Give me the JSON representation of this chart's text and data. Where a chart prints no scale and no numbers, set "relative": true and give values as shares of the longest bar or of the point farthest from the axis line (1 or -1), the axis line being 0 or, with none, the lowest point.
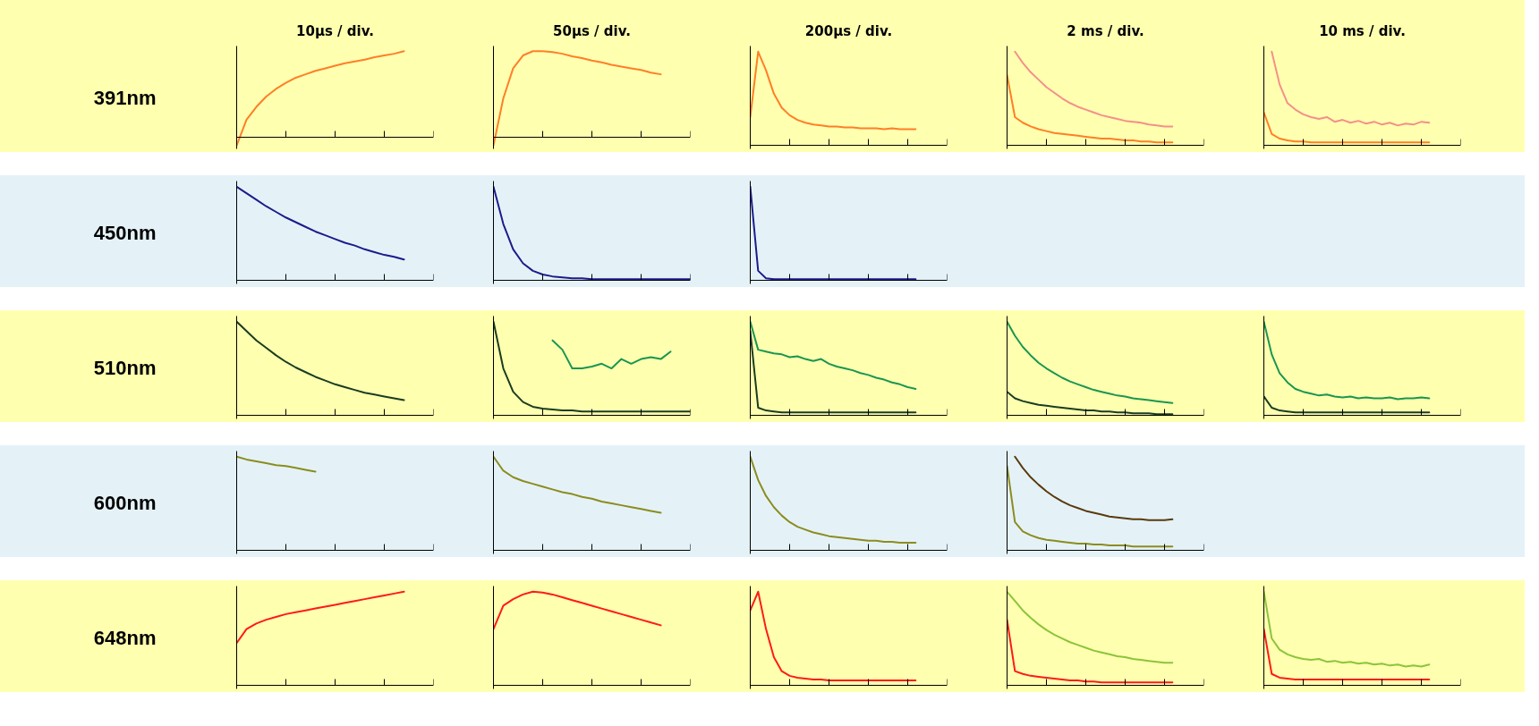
{
  "chart_data": [
    {
      "type": "line",
      "relative": true,
      "tick_labels": false,
      "title": "10μs / div.",
      "ylabel": "391nm",
      "categories": [
        null,
        null,
        null,
        null,
        null,
        null,
        null,
        null,
        null,
        null,
        null,
        null,
        null,
        null,
        null,
        null,
        null,
        null,
        null,
        null,
        null
      ],
      "series": [
        {
          "color": "#ff7f27",
          "values": [
            -0.1,
            0.2,
            0.35,
            0.47,
            0.56,
            0.63,
            0.69,
            0.73,
            0.77,
            0.8,
            0.83,
            0.86,
            0.88,
            0.9,
            0.93,
            0.95,
            0.97,
            1.0,
            null,
            null,
            null
          ]
        }
      ]
    },
    {
      "type": "line",
      "relative": true,
      "tick_labels": false,
      "title": "50μs / div.",
      "categories": [
        null,
        null,
        null,
        null,
        null,
        null,
        null,
        null,
        null,
        null,
        null,
        null,
        null,
        null,
        null,
        null,
        null,
        null,
        null,
        null,
        null
      ],
      "series": [
        {
          "color": "#ff7f27",
          "values": [
            -0.1,
            0.45,
            0.8,
            0.95,
            1.0,
            1.0,
            0.99,
            0.97,
            0.94,
            0.92,
            0.89,
            0.87,
            0.84,
            0.82,
            0.8,
            0.78,
            0.75,
            0.73,
            null,
            null,
            null
          ]
        }
      ]
    },
    {
      "type": "line",
      "relative": true,
      "tick_labels": false,
      "title": "200μs / div.",
      "categories": [
        null,
        null,
        null,
        null,
        null,
        null,
        null,
        null,
        null,
        null,
        null,
        null,
        null,
        null,
        null,
        null,
        null,
        null,
        null,
        null,
        null,
        null,
        null,
        null,
        null,
        null
      ],
      "series": [
        {
          "color": "#ff7f27",
          "values": [
            0.3,
            1.0,
            0.8,
            0.55,
            0.4,
            0.32,
            0.27,
            0.24,
            0.22,
            0.21,
            0.2,
            0.2,
            0.19,
            0.19,
            0.18,
            0.18,
            0.18,
            0.17,
            0.18,
            0.17,
            0.17,
            0.17,
            null,
            null,
            null,
            null
          ]
        }
      ]
    },
    {
      "type": "line",
      "relative": true,
      "tick_labels": false,
      "title": "2 ms / div.",
      "categories": [
        null,
        null,
        null,
        null,
        null,
        null,
        null,
        null,
        null,
        null,
        null,
        null,
        null,
        null,
        null,
        null,
        null,
        null,
        null,
        null,
        null,
        null,
        null,
        null,
        null,
        null
      ],
      "series": [
        {
          "color": "#ff7f27",
          "values": [
            0.75,
            0.3,
            0.24,
            0.2,
            0.17,
            0.15,
            0.13,
            0.12,
            0.11,
            0.1,
            0.09,
            0.08,
            0.07,
            0.07,
            0.06,
            0.05,
            0.05,
            0.04,
            0.04,
            0.03,
            0.03,
            0.03,
            null,
            null,
            null,
            null
          ]
        },
        {
          "color": "#f4908a",
          "values": [
            null,
            1.0,
            0.88,
            0.78,
            0.7,
            0.62,
            0.56,
            0.5,
            0.45,
            0.41,
            0.38,
            0.35,
            0.32,
            0.3,
            0.28,
            0.26,
            0.25,
            0.24,
            0.22,
            0.21,
            0.2,
            0.2,
            null,
            null,
            null,
            null
          ]
        }
      ]
    },
    {
      "type": "line",
      "relative": true,
      "tick_labels": false,
      "title": "10 ms / div.",
      "categories": [
        null,
        null,
        null,
        null,
        null,
        null,
        null,
        null,
        null,
        null,
        null,
        null,
        null,
        null,
        null,
        null,
        null,
        null,
        null,
        null,
        null,
        null,
        null,
        null,
        null,
        null
      ],
      "series": [
        {
          "color": "#ff7f27",
          "values": [
            0.35,
            0.12,
            0.07,
            0.05,
            0.04,
            0.04,
            0.03,
            0.03,
            0.03,
            0.03,
            0.03,
            0.03,
            0.03,
            0.03,
            0.03,
            0.03,
            0.03,
            0.03,
            0.03,
            0.03,
            0.03,
            0.03,
            null,
            null,
            null,
            null
          ]
        },
        {
          "color": "#f4908a",
          "values": [
            null,
            1.0,
            0.65,
            0.45,
            0.38,
            0.33,
            0.3,
            0.28,
            0.3,
            0.25,
            0.27,
            0.24,
            0.26,
            0.23,
            0.25,
            0.22,
            0.24,
            0.21,
            0.23,
            0.22,
            0.25,
            0.24,
            null,
            null,
            null,
            null
          ]
        }
      ]
    },
    {
      "type": "line",
      "relative": true,
      "tick_labels": false,
      "ylabel": "450nm",
      "categories": [
        null,
        null,
        null,
        null,
        null,
        null,
        null,
        null,
        null,
        null,
        null,
        null,
        null,
        null,
        null,
        null,
        null,
        null,
        null,
        null,
        null
      ],
      "series": [
        {
          "color": "#1c1c8c",
          "values": [
            1.0,
            0.93,
            0.86,
            0.79,
            0.73,
            0.67,
            0.62,
            0.57,
            0.52,
            0.48,
            0.44,
            0.4,
            0.37,
            0.33,
            0.3,
            0.27,
            0.25,
            0.22,
            null,
            null,
            null
          ]
        }
      ]
    },
    {
      "type": "line",
      "relative": true,
      "tick_labels": false,
      "categories": [
        null,
        null,
        null,
        null,
        null,
        null,
        null,
        null,
        null,
        null,
        null,
        null,
        null,
        null,
        null,
        null,
        null,
        null,
        null,
        null,
        null
      ],
      "series": [
        {
          "color": "#1c1c8c",
          "values": [
            1.0,
            0.6,
            0.33,
            0.18,
            0.1,
            0.06,
            0.04,
            0.03,
            0.02,
            0.02,
            0.01,
            0.01,
            0.01,
            0.01,
            0.01,
            0.01,
            0.01,
            0.01,
            0.01,
            0.01,
            0.01
          ]
        }
      ]
    },
    {
      "type": "line",
      "relative": true,
      "tick_labels": false,
      "categories": [
        null,
        null,
        null,
        null,
        null,
        null,
        null,
        null,
        null,
        null,
        null,
        null,
        null,
        null,
        null,
        null,
        null,
        null,
        null,
        null,
        null,
        null,
        null,
        null,
        null,
        null
      ],
      "series": [
        {
          "color": "#1c1c8c",
          "values": [
            1.0,
            0.1,
            0.02,
            0.01,
            0.01,
            0.01,
            0.01,
            0.01,
            0.01,
            0.01,
            0.01,
            0.01,
            0.01,
            0.01,
            0.01,
            0.01,
            0.01,
            0.01,
            0.01,
            0.01,
            0.01,
            0.01,
            null,
            null,
            null,
            null
          ]
        }
      ]
    },
    {
      "type": "line",
      "relative": true,
      "tick_labels": false,
      "ylabel": "510nm",
      "categories": [
        null,
        null,
        null,
        null,
        null,
        null,
        null,
        null,
        null,
        null,
        null,
        null,
        null,
        null,
        null,
        null,
        null,
        null,
        null,
        null,
        null
      ],
      "series": [
        {
          "color": "#1a3d20",
          "values": [
            1.0,
            0.9,
            0.8,
            0.72,
            0.64,
            0.57,
            0.51,
            0.46,
            0.41,
            0.37,
            0.33,
            0.3,
            0.27,
            0.24,
            0.22,
            0.2,
            0.18,
            0.16,
            null,
            null,
            null
          ]
        }
      ]
    },
    {
      "type": "line",
      "relative": true,
      "tick_labels": false,
      "categories": [
        null,
        null,
        null,
        null,
        null,
        null,
        null,
        null,
        null,
        null,
        null,
        null,
        null,
        null,
        null,
        null,
        null,
        null,
        null,
        null,
        null
      ],
      "series": [
        {
          "color": "#1a3d20",
          "values": [
            1.0,
            0.5,
            0.25,
            0.14,
            0.09,
            0.07,
            0.06,
            0.05,
            0.05,
            0.04,
            0.04,
            0.04,
            0.04,
            0.04,
            0.04,
            0.04,
            0.04,
            0.04,
            0.04,
            0.04,
            0.04
          ]
        },
        {
          "color": "#1a9650",
          "values": [
            null,
            null,
            null,
            null,
            null,
            null,
            0.8,
            0.7,
            0.5,
            0.5,
            0.52,
            0.55,
            0.5,
            0.6,
            0.55,
            0.6,
            0.62,
            0.6,
            0.68,
            null,
            null
          ]
        }
      ]
    },
    {
      "type": "line",
      "relative": true,
      "tick_labels": false,
      "categories": [
        null,
        null,
        null,
        null,
        null,
        null,
        null,
        null,
        null,
        null,
        null,
        null,
        null,
        null,
        null,
        null,
        null,
        null,
        null,
        null,
        null,
        null,
        null,
        null,
        null,
        null
      ],
      "series": [
        {
          "color": "#1a3d20",
          "values": [
            0.9,
            0.08,
            0.05,
            0.04,
            0.03,
            0.03,
            0.03,
            0.03,
            0.03,
            0.03,
            0.03,
            0.03,
            0.03,
            0.03,
            0.03,
            0.03,
            0.03,
            0.03,
            0.03,
            0.03,
            0.03,
            0.03,
            null,
            null,
            null,
            null
          ]
        },
        {
          "color": "#1a9650",
          "values": [
            1.0,
            0.7,
            0.68,
            0.66,
            0.65,
            0.62,
            0.63,
            0.6,
            0.58,
            0.6,
            0.55,
            0.52,
            0.5,
            0.48,
            0.45,
            0.43,
            0.4,
            0.38,
            0.35,
            0.33,
            0.3,
            0.28,
            null,
            null,
            null,
            null
          ]
        }
      ]
    },
    {
      "type": "line",
      "relative": true,
      "tick_labels": false,
      "categories": [
        null,
        null,
        null,
        null,
        null,
        null,
        null,
        null,
        null,
        null,
        null,
        null,
        null,
        null,
        null,
        null,
        null,
        null,
        null,
        null,
        null,
        null,
        null,
        null,
        null,
        null
      ],
      "series": [
        {
          "color": "#1a3d20",
          "values": [
            0.25,
            0.18,
            0.15,
            0.13,
            0.11,
            0.1,
            0.09,
            0.08,
            0.07,
            0.06,
            0.05,
            0.05,
            0.04,
            0.04,
            0.03,
            0.03,
            0.02,
            0.02,
            0.02,
            0.01,
            0.01,
            0.01,
            null,
            null,
            null,
            null
          ]
        },
        {
          "color": "#1a9650",
          "values": [
            1.0,
            0.85,
            0.73,
            0.64,
            0.56,
            0.5,
            0.45,
            0.4,
            0.36,
            0.33,
            0.3,
            0.27,
            0.25,
            0.23,
            0.21,
            0.2,
            0.18,
            0.17,
            0.16,
            0.15,
            0.14,
            0.13,
            null,
            null,
            null,
            null
          ]
        }
      ]
    },
    {
      "type": "line",
      "relative": true,
      "tick_labels": false,
      "categories": [
        null,
        null,
        null,
        null,
        null,
        null,
        null,
        null,
        null,
        null,
        null,
        null,
        null,
        null,
        null,
        null,
        null,
        null,
        null,
        null,
        null,
        null,
        null,
        null,
        null,
        null
      ],
      "series": [
        {
          "color": "#1a3d20",
          "values": [
            0.2,
            0.08,
            0.05,
            0.04,
            0.03,
            0.03,
            0.03,
            0.03,
            0.03,
            0.03,
            0.03,
            0.03,
            0.03,
            0.03,
            0.03,
            0.03,
            0.03,
            0.03,
            0.03,
            0.03,
            0.03,
            0.03,
            null,
            null,
            null,
            null
          ]
        },
        {
          "color": "#1a9650",
          "values": [
            1.0,
            0.65,
            0.45,
            0.35,
            0.28,
            0.25,
            0.23,
            0.21,
            0.22,
            0.2,
            0.19,
            0.2,
            0.18,
            0.19,
            0.18,
            0.18,
            0.19,
            0.17,
            0.18,
            0.18,
            0.19,
            0.18,
            null,
            null,
            null,
            null
          ]
        }
      ]
    },
    {
      "type": "line",
      "relative": true,
      "tick_labels": false,
      "ylabel": "600nm",
      "categories": [
        null,
        null,
        null,
        null,
        null,
        null,
        null,
        null,
        null,
        null,
        null,
        null,
        null,
        null,
        null,
        null,
        null,
        null,
        null,
        null,
        null
      ],
      "series": [
        {
          "color": "#8c8c1e",
          "values": [
            1.0,
            0.97,
            0.95,
            0.93,
            0.91,
            0.9,
            0.88,
            0.86,
            0.84,
            null,
            null,
            null,
            null,
            null,
            null,
            null,
            null,
            null,
            null,
            null,
            null
          ]
        }
      ]
    },
    {
      "type": "line",
      "relative": true,
      "tick_labels": false,
      "categories": [
        null,
        null,
        null,
        null,
        null,
        null,
        null,
        null,
        null,
        null,
        null,
        null,
        null,
        null,
        null,
        null,
        null,
        null,
        null,
        null,
        null
      ],
      "series": [
        {
          "color": "#8c8c1e",
          "values": [
            1.0,
            0.85,
            0.78,
            0.74,
            0.71,
            0.68,
            0.65,
            0.62,
            0.6,
            0.57,
            0.55,
            0.52,
            0.5,
            0.48,
            0.46,
            0.44,
            0.42,
            0.4,
            null,
            null,
            null
          ]
        }
      ]
    },
    {
      "type": "line",
      "relative": true,
      "tick_labels": false,
      "categories": [
        null,
        null,
        null,
        null,
        null,
        null,
        null,
        null,
        null,
        null,
        null,
        null,
        null,
        null,
        null,
        null,
        null,
        null,
        null,
        null,
        null,
        null,
        null,
        null,
        null,
        null
      ],
      "series": [
        {
          "color": "#8c8c1e",
          "values": [
            1.0,
            0.75,
            0.58,
            0.46,
            0.37,
            0.3,
            0.25,
            0.22,
            0.19,
            0.17,
            0.15,
            0.14,
            0.13,
            0.12,
            0.11,
            0.1,
            0.1,
            0.09,
            0.09,
            0.08,
            0.08,
            0.08,
            null,
            null,
            null,
            null
          ]
        }
      ]
    },
    {
      "type": "line",
      "relative": true,
      "tick_labels": false,
      "categories": [
        null,
        null,
        null,
        null,
        null,
        null,
        null,
        null,
        null,
        null,
        null,
        null,
        null,
        null,
        null,
        null,
        null,
        null,
        null,
        null,
        null,
        null,
        null,
        null,
        null,
        null
      ],
      "series": [
        {
          "color": "#8c8c1e",
          "values": [
            0.9,
            0.3,
            0.2,
            0.16,
            0.13,
            0.11,
            0.1,
            0.09,
            0.08,
            0.07,
            0.07,
            0.06,
            0.06,
            0.05,
            0.05,
            0.05,
            0.04,
            0.04,
            0.04,
            0.04,
            0.04,
            0.04,
            null,
            null,
            null,
            null
          ]
        },
        {
          "color": "#5a3a0c",
          "values": [
            null,
            1.0,
            0.88,
            0.78,
            0.7,
            0.63,
            0.57,
            0.52,
            0.48,
            0.45,
            0.42,
            0.4,
            0.38,
            0.36,
            0.35,
            0.34,
            0.33,
            0.33,
            0.32,
            0.32,
            0.32,
            0.33,
            null,
            null,
            null,
            null
          ]
        }
      ]
    },
    {
      "type": "line",
      "relative": true,
      "tick_labels": false,
      "ylabel": "648nm",
      "categories": [
        null,
        null,
        null,
        null,
        null,
        null,
        null,
        null,
        null,
        null,
        null,
        null,
        null,
        null,
        null,
        null,
        null,
        null,
        null,
        null,
        null
      ],
      "series": [
        {
          "color": "#ff1a1a",
          "values": [
            0.45,
            0.6,
            0.66,
            0.7,
            0.73,
            0.76,
            0.78,
            0.8,
            0.82,
            0.84,
            0.86,
            0.88,
            0.9,
            0.92,
            0.94,
            0.96,
            0.98,
            1.0,
            null,
            null,
            null
          ]
        }
      ]
    },
    {
      "type": "line",
      "relative": true,
      "tick_labels": false,
      "categories": [
        null,
        null,
        null,
        null,
        null,
        null,
        null,
        null,
        null,
        null,
        null,
        null,
        null,
        null,
        null,
        null,
        null,
        null,
        null,
        null,
        null
      ],
      "series": [
        {
          "color": "#ff1a1a",
          "values": [
            0.6,
            0.85,
            0.92,
            0.97,
            1.0,
            0.99,
            0.97,
            0.94,
            0.91,
            0.88,
            0.85,
            0.82,
            0.79,
            0.76,
            0.73,
            0.7,
            0.67,
            0.64,
            null,
            null,
            null
          ]
        }
      ]
    },
    {
      "type": "line",
      "relative": true,
      "tick_labels": false,
      "categories": [
        null,
        null,
        null,
        null,
        null,
        null,
        null,
        null,
        null,
        null,
        null,
        null,
        null,
        null,
        null,
        null,
        null,
        null,
        null,
        null,
        null,
        null,
        null,
        null,
        null,
        null
      ],
      "series": [
        {
          "color": "#ff1a1a",
          "values": [
            0.8,
            1.0,
            0.6,
            0.3,
            0.15,
            0.1,
            0.08,
            0.07,
            0.06,
            0.06,
            0.05,
            0.05,
            0.05,
            0.05,
            0.05,
            0.05,
            0.05,
            0.05,
            0.05,
            0.05,
            0.05,
            0.05,
            null,
            null,
            null,
            null
          ]
        }
      ]
    },
    {
      "type": "line",
      "relative": true,
      "tick_labels": false,
      "categories": [
        null,
        null,
        null,
        null,
        null,
        null,
        null,
        null,
        null,
        null,
        null,
        null,
        null,
        null,
        null,
        null,
        null,
        null,
        null,
        null,
        null,
        null,
        null,
        null,
        null,
        null
      ],
      "series": [
        {
          "color": "#ff1a1a",
          "values": [
            0.7,
            0.15,
            0.12,
            0.1,
            0.09,
            0.08,
            0.07,
            0.06,
            0.05,
            0.05,
            0.04,
            0.04,
            0.03,
            0.03,
            0.03,
            0.03,
            0.03,
            0.03,
            0.03,
            0.03,
            0.03,
            0.03,
            null,
            null,
            null,
            null
          ]
        },
        {
          "color": "#8cc43c",
          "values": [
            1.0,
            0.9,
            0.8,
            0.72,
            0.65,
            0.59,
            0.54,
            0.5,
            0.46,
            0.43,
            0.4,
            0.37,
            0.35,
            0.33,
            0.31,
            0.3,
            0.28,
            0.27,
            0.26,
            0.25,
            0.24,
            0.24,
            null,
            null,
            null,
            null
          ]
        }
      ]
    },
    {
      "type": "line",
      "relative": true,
      "tick_labels": false,
      "categories": [
        null,
        null,
        null,
        null,
        null,
        null,
        null,
        null,
        null,
        null,
        null,
        null,
        null,
        null,
        null,
        null,
        null,
        null,
        null,
        null,
        null,
        null,
        null,
        null,
        null,
        null
      ],
      "series": [
        {
          "color": "#ff1a1a",
          "values": [
            0.6,
            0.12,
            0.08,
            0.07,
            0.06,
            0.06,
            0.06,
            0.06,
            0.06,
            0.06,
            0.06,
            0.06,
            0.06,
            0.06,
            0.06,
            0.06,
            0.06,
            0.06,
            0.06,
            0.06,
            0.06,
            0.06,
            null,
            null,
            null,
            null
          ]
        },
        {
          "color": "#8cc43c",
          "values": [
            1.0,
            0.5,
            0.38,
            0.33,
            0.3,
            0.28,
            0.27,
            0.28,
            0.25,
            0.26,
            0.24,
            0.25,
            0.23,
            0.24,
            0.22,
            0.23,
            0.21,
            0.22,
            0.2,
            0.21,
            0.2,
            0.22,
            null,
            null,
            null,
            null
          ]
        }
      ]
    }
  ]
}
